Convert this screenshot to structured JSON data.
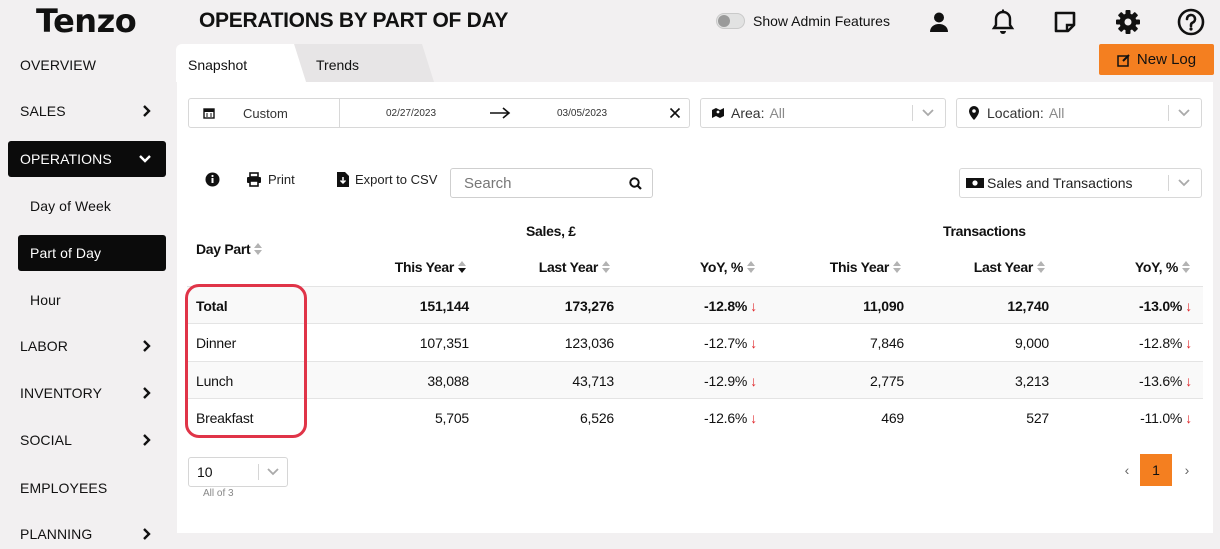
{
  "app": {
    "logo": "Tenzo",
    "page_title": "OPERATIONS BY PART OF DAY"
  },
  "header": {
    "admin_label": "Show Admin Features",
    "icons": [
      "user-icon",
      "bell-icon",
      "note-icon",
      "gear-icon",
      "help-icon"
    ]
  },
  "sidebar": {
    "items": [
      {
        "label": "OVERVIEW"
      },
      {
        "label": "SALES"
      },
      {
        "label": "OPERATIONS"
      },
      {
        "label": "Day of Week"
      },
      {
        "label": "Part of Day"
      },
      {
        "label": "Hour"
      },
      {
        "label": "LABOR"
      },
      {
        "label": "INVENTORY"
      },
      {
        "label": "SOCIAL"
      },
      {
        "label": "EMPLOYEES"
      },
      {
        "label": "PLANNING"
      }
    ]
  },
  "tabs": {
    "snapshot": "Snapshot",
    "trends": "Trends"
  },
  "new_log_label": "New Log",
  "filters": {
    "date_mode": "Custom",
    "start_date": "02/27/2023",
    "end_date": "03/05/2023",
    "area_label": "Area:",
    "area_value": "All",
    "location_label": "Location:",
    "location_value": "All"
  },
  "toolbar": {
    "print_label": "Print",
    "export_label": "Export to CSV",
    "search_placeholder": "Search",
    "metric_select": "Sales and Transactions"
  },
  "table": {
    "group_sales": "Sales, £",
    "group_transactions": "Transactions",
    "col_day_part": "Day Part",
    "col_this_year": "This Year",
    "col_last_year": "Last Year",
    "col_yoy": "YoY, %",
    "rows": [
      {
        "part": "Total",
        "s_ty": "151,144",
        "s_ly": "173,276",
        "s_yoy": "-12.8%",
        "t_ty": "11,090",
        "t_ly": "12,740",
        "t_yoy": "-13.0%"
      },
      {
        "part": "Dinner",
        "s_ty": "107,351",
        "s_ly": "123,036",
        "s_yoy": "-12.7%",
        "t_ty": "7,846",
        "t_ly": "9,000",
        "t_yoy": "-12.8%"
      },
      {
        "part": "Lunch",
        "s_ty": "38,088",
        "s_ly": "43,713",
        "s_yoy": "-12.9%",
        "t_ty": "2,775",
        "t_ly": "3,213",
        "t_yoy": "-13.6%"
      },
      {
        "part": "Breakfast",
        "s_ty": "5,705",
        "s_ly": "6,526",
        "s_yoy": "-12.6%",
        "t_ty": "469",
        "t_ly": "527",
        "t_yoy": "-11.0%"
      }
    ]
  },
  "pagination": {
    "page_size": "10",
    "all_of": "All of 3",
    "prev": "‹",
    "current": "1",
    "next": "›"
  },
  "colors": {
    "accent": "#f47f20",
    "highlight": "#e03448",
    "down": "#e0262a"
  }
}
